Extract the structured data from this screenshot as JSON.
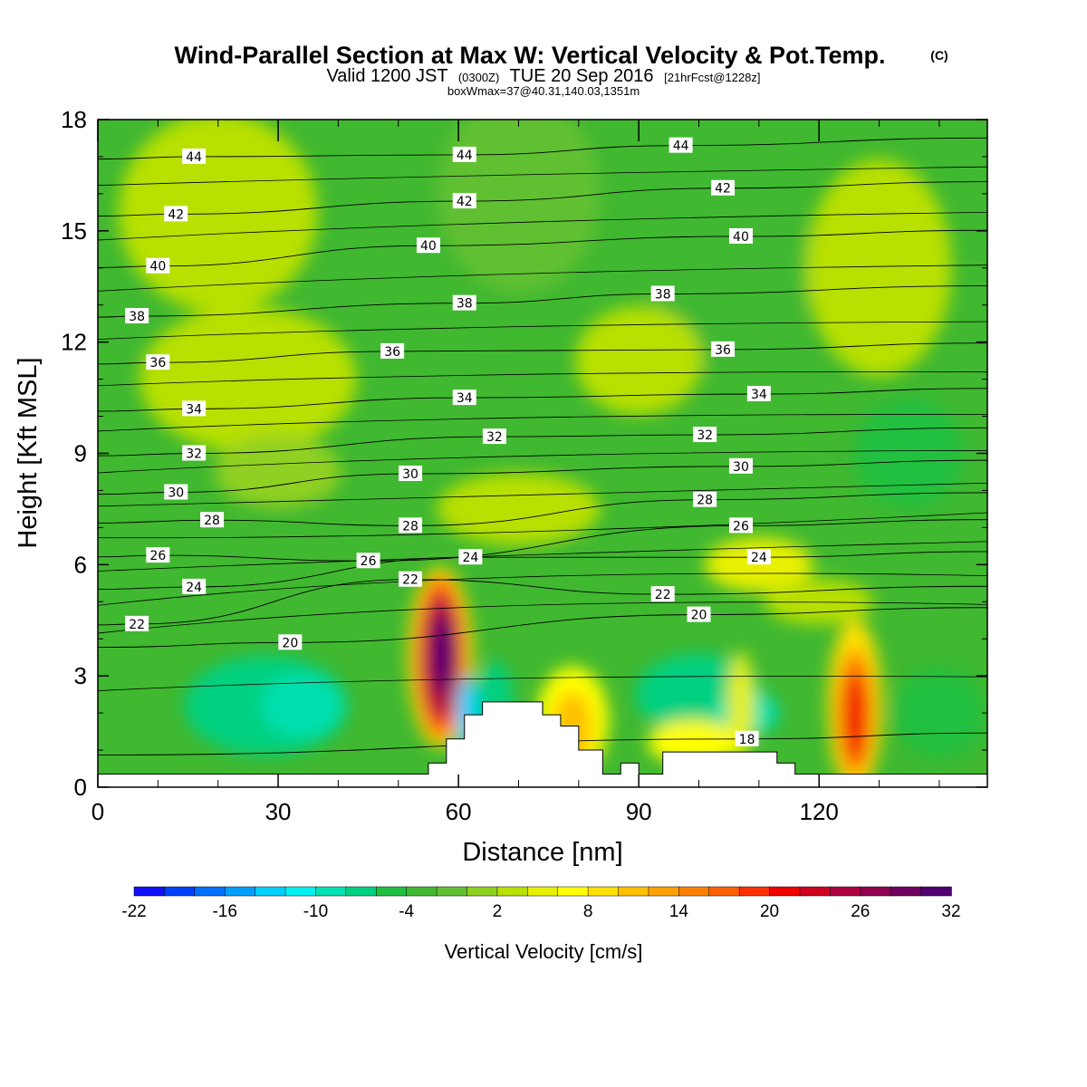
{
  "title": {
    "main": "Wind-Parallel Section at Max W: Vertical Velocity & Pot.Temp.",
    "copyright": "(C)",
    "valid_prefix": "Valid 1200 JST",
    "valid_utc": "(0300Z)",
    "valid_date": "TUE 20 Sep 2016",
    "forecast": "[21hrFcst@1228z]",
    "box_info": "boxWmax=37@40.31,140.03,1351m"
  },
  "chart_data": {
    "type": "contour",
    "xlabel": "Distance [nm]",
    "ylabel": "Height [Kft MSL]",
    "xlim": [
      0,
      148
    ],
    "ylim": [
      0,
      18
    ],
    "x_ticks": [
      "0",
      "30",
      "60",
      "90",
      "120"
    ],
    "y_ticks": [
      "0",
      "3",
      "6",
      "9",
      "12",
      "15",
      "18"
    ],
    "colorbar": {
      "label": "Vertical Velocity [cm/s]",
      "tick_labels": [
        "-22",
        "-16",
        "-10",
        "-4",
        "2",
        "8",
        "14",
        "20",
        "26",
        "32"
      ],
      "levels_min": -22,
      "levels_max": 32,
      "level_step": 2,
      "colors": [
        "#1010ff",
        "#0040ff",
        "#0070ff",
        "#00a0ff",
        "#00d0ff",
        "#00f0f0",
        "#00e0b0",
        "#00d080",
        "#20c040",
        "#40b830",
        "#60c030",
        "#90d020",
        "#b8e000",
        "#e8f000",
        "#ffff00",
        "#ffe000",
        "#ffc000",
        "#ffa000",
        "#ff8000",
        "#ff6000",
        "#ff3000",
        "#f00000",
        "#d00020",
        "#b00040",
        "#900050",
        "#700060",
        "#500070"
      ]
    },
    "terrain_profile_kft": [
      {
        "x": 0,
        "h": 0.35
      },
      {
        "x": 55,
        "h": 0.35
      },
      {
        "x": 55,
        "h": 0.65
      },
      {
        "x": 58,
        "h": 0.65
      },
      {
        "x": 58,
        "h": 1.3
      },
      {
        "x": 61,
        "h": 1.3
      },
      {
        "x": 61,
        "h": 1.95
      },
      {
        "x": 64,
        "h": 1.95
      },
      {
        "x": 64,
        "h": 2.3
      },
      {
        "x": 74,
        "h": 2.3
      },
      {
        "x": 74,
        "h": 1.95
      },
      {
        "x": 77,
        "h": 1.95
      },
      {
        "x": 77,
        "h": 1.65
      },
      {
        "x": 80,
        "h": 1.65
      },
      {
        "x": 80,
        "h": 1.0
      },
      {
        "x": 84,
        "h": 1.0
      },
      {
        "x": 84,
        "h": 0.35
      },
      {
        "x": 87,
        "h": 0.35
      },
      {
        "x": 87,
        "h": 0.65
      },
      {
        "x": 90,
        "h": 0.65
      },
      {
        "x": 90,
        "h": 0.35
      },
      {
        "x": 94,
        "h": 0.35
      },
      {
        "x": 94,
        "h": 0.65
      },
      {
        "x": 94,
        "h": 0.95
      },
      {
        "x": 113,
        "h": 0.95
      },
      {
        "x": 113,
        "h": 0.65
      },
      {
        "x": 116,
        "h": 0.65
      },
      {
        "x": 116,
        "h": 0.35
      },
      {
        "x": 148,
        "h": 0.35
      }
    ],
    "vertical_velocity_features": [
      {
        "name": "strong updraft",
        "x": 57,
        "y": 3.5,
        "peak": 32
      },
      {
        "name": "downdraft",
        "x": 61.5,
        "y": 2.2,
        "peak": -14
      },
      {
        "name": "updraft",
        "x": 126,
        "y": 2.0,
        "peak": 20
      },
      {
        "name": "updraft",
        "x": 79,
        "y": 1.8,
        "peak": 10
      },
      {
        "name": "updraft",
        "x": 107,
        "y": 2.0,
        "peak": 4
      },
      {
        "name": "downdraft",
        "x": 34,
        "y": 2.2,
        "peak": -10
      }
    ],
    "potential_temperature_labels": [
      {
        "value": "44",
        "x": 16,
        "y": 17.0
      },
      {
        "value": "44",
        "x": 61,
        "y": 17.05
      },
      {
        "value": "44",
        "x": 97,
        "y": 17.3
      },
      {
        "value": "42",
        "x": 13,
        "y": 15.45
      },
      {
        "value": "42",
        "x": 61,
        "y": 15.8
      },
      {
        "value": "42",
        "x": 104,
        "y": 16.15
      },
      {
        "value": "40",
        "x": 10,
        "y": 14.05
      },
      {
        "value": "40",
        "x": 55,
        "y": 14.6
      },
      {
        "value": "40",
        "x": 107,
        "y": 14.85
      },
      {
        "value": "38",
        "x": 6.5,
        "y": 12.7
      },
      {
        "value": "38",
        "x": 61,
        "y": 13.05
      },
      {
        "value": "38",
        "x": 94,
        "y": 13.3
      },
      {
        "value": "36",
        "x": 10,
        "y": 11.45
      },
      {
        "value": "36",
        "x": 49,
        "y": 11.75
      },
      {
        "value": "36",
        "x": 104,
        "y": 11.8
      },
      {
        "value": "34",
        "x": 16,
        "y": 10.2
      },
      {
        "value": "34",
        "x": 61,
        "y": 10.5
      },
      {
        "value": "34",
        "x": 110,
        "y": 10.6
      },
      {
        "value": "32",
        "x": 16,
        "y": 9.0
      },
      {
        "value": "32",
        "x": 66,
        "y": 9.45
      },
      {
        "value": "32",
        "x": 101,
        "y": 9.5
      },
      {
        "value": "30",
        "x": 13,
        "y": 7.95
      },
      {
        "value": "30",
        "x": 52,
        "y": 8.45
      },
      {
        "value": "30",
        "x": 107,
        "y": 8.65
      },
      {
        "value": "28",
        "x": 19,
        "y": 7.2
      },
      {
        "value": "28",
        "x": 52,
        "y": 7.05
      },
      {
        "value": "28",
        "x": 101,
        "y": 7.75
      },
      {
        "value": "26",
        "x": 10,
        "y": 6.25
      },
      {
        "value": "26",
        "x": 45,
        "y": 6.1
      },
      {
        "value": "26",
        "x": 107,
        "y": 7.05
      },
      {
        "value": "24",
        "x": 16,
        "y": 5.4
      },
      {
        "value": "24",
        "x": 62,
        "y": 6.2
      },
      {
        "value": "24",
        "x": 110,
        "y": 6.2
      },
      {
        "value": "22",
        "x": 6.5,
        "y": 4.4
      },
      {
        "value": "22",
        "x": 52,
        "y": 5.6
      },
      {
        "value": "22",
        "x": 94,
        "y": 5.2
      },
      {
        "value": "20",
        "x": 32,
        "y": 3.9
      },
      {
        "value": "20",
        "x": 100,
        "y": 4.65
      },
      {
        "value": "18",
        "x": 108,
        "y": 1.3
      }
    ],
    "grid": false
  }
}
